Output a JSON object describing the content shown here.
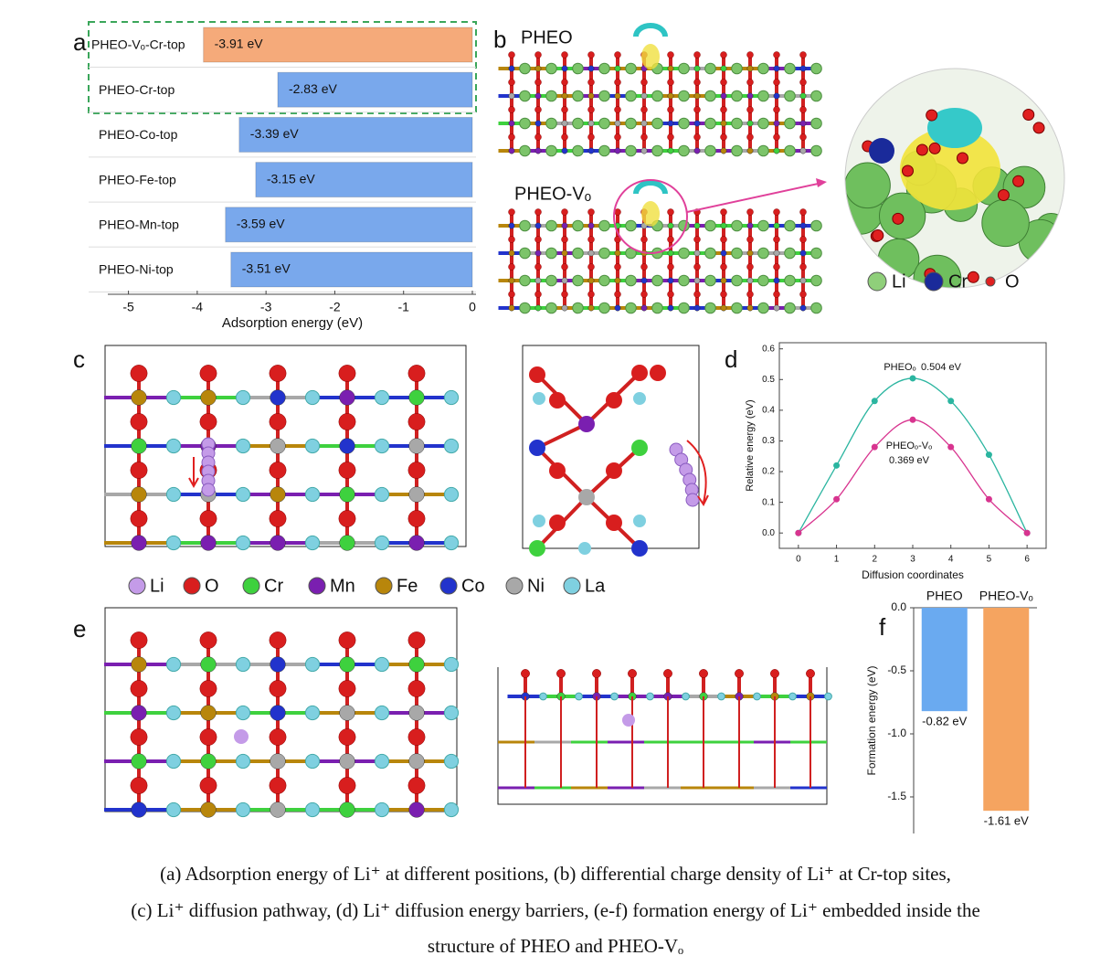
{
  "chart_data": [
    {
      "type": "hbar",
      "categories": [
        "PHEO-Vₒ-Cr-top",
        "PHEO-Cr-top",
        "PHEO-Co-top",
        "PHEO-Fe-top",
        "PHEO-Mn-top",
        "PHEO-Ni-top"
      ],
      "values": [
        -3.91,
        -2.83,
        -3.39,
        -3.15,
        -3.59,
        -3.51
      ],
      "value_labels": [
        "-3.91 eV",
        "-2.83 eV",
        "-3.39 eV",
        "-3.15 eV",
        "-3.59 eV",
        "-3.51 eV"
      ],
      "colors": [
        "#f5aa7a",
        "#79a8ec",
        "#79a8ec",
        "#79a8ec",
        "#79a8ec",
        "#79a8ec"
      ],
      "xlim": [
        -5.3,
        0
      ],
      "xticks": [
        -5,
        -4,
        -3,
        -2,
        -1,
        0
      ],
      "xlabel": "Adsorption energy (eV)"
    },
    {
      "type": "line",
      "x": [
        0,
        1,
        2,
        3,
        4,
        5,
        6
      ],
      "series": [
        {
          "name": "PHEOₒ",
          "color": "#2bb5a0",
          "values": [
            0,
            0.22,
            0.43,
            0.504,
            0.43,
            0.255,
            0
          ]
        },
        {
          "name": "PHEOₒ-Vₒ",
          "color": "#d8348f",
          "values": [
            0,
            0.11,
            0.28,
            0.369,
            0.28,
            0.11,
            0
          ]
        }
      ],
      "annotations": [
        "0.504 eV",
        "0.369 eV"
      ],
      "xlim": [
        -0.5,
        6.5
      ],
      "xticks": [
        0,
        1,
        2,
        3,
        4,
        5,
        6
      ],
      "ylim": [
        -0.05,
        0.62
      ],
      "yticks": [
        {
          "value": 0,
          "label": "0.0"
        },
        0.1,
        0.2,
        0.3,
        0.4,
        0.5,
        0.6
      ],
      "xlabel": "Diffusion coordinates",
      "ylabel": "Relative energy (eV)"
    },
    {
      "type": "bar",
      "categories": [
        "PHEO",
        "PHEO-Vₒ"
      ],
      "values": [
        -0.82,
        -1.61
      ],
      "value_labels": [
        "-0.82 eV",
        "-1.61 eV"
      ],
      "colors": [
        "#6aaaf0",
        "#f5a460"
      ],
      "ylim": [
        -1.79,
        0
      ],
      "yticks": [
        {
          "value": 0,
          "label": "0.0"
        },
        -0.5,
        {
          "value": -1,
          "label": "-1.0"
        },
        -1.5
      ],
      "ylabel": "Formation energy (eV)"
    }
  ],
  "panel_labels": [
    "a",
    "b",
    "c",
    "d",
    "e",
    "f"
  ],
  "panel_b": {
    "labels": [
      "PHEO",
      "PHEO-Vₒ"
    ],
    "legend": [
      {
        "name": "Li",
        "color": "#8fcf7a"
      },
      {
        "name": "Cr",
        "color": "#1a2a9a"
      },
      {
        "name": "O",
        "color": "#e02020"
      }
    ]
  },
  "atom_legend": [
    {
      "name": "Li",
      "color": "#c49be8"
    },
    {
      "name": "O",
      "color": "#d81e1e"
    },
    {
      "name": "Cr",
      "color": "#3ed13e"
    },
    {
      "name": "Mn",
      "color": "#7a1fb0"
    },
    {
      "name": "Fe",
      "color": "#b8860b"
    },
    {
      "name": "Co",
      "color": "#2233cc"
    },
    {
      "name": "Ni",
      "color": "#a8a8a8"
    },
    {
      "name": "La",
      "color": "#7fd0e0"
    }
  ],
  "caption": [
    "(a) Adsorption energy of Li⁺ at different positions, (b) differential charge density of Li⁺ at Cr-top sites,",
    "(c) Li⁺ diffusion pathway, (d) Li⁺ diffusion energy barriers, (e-f) formation energy of Li⁺ embedded inside the",
    "structure of PHEO and PHEO-Vₒ"
  ]
}
